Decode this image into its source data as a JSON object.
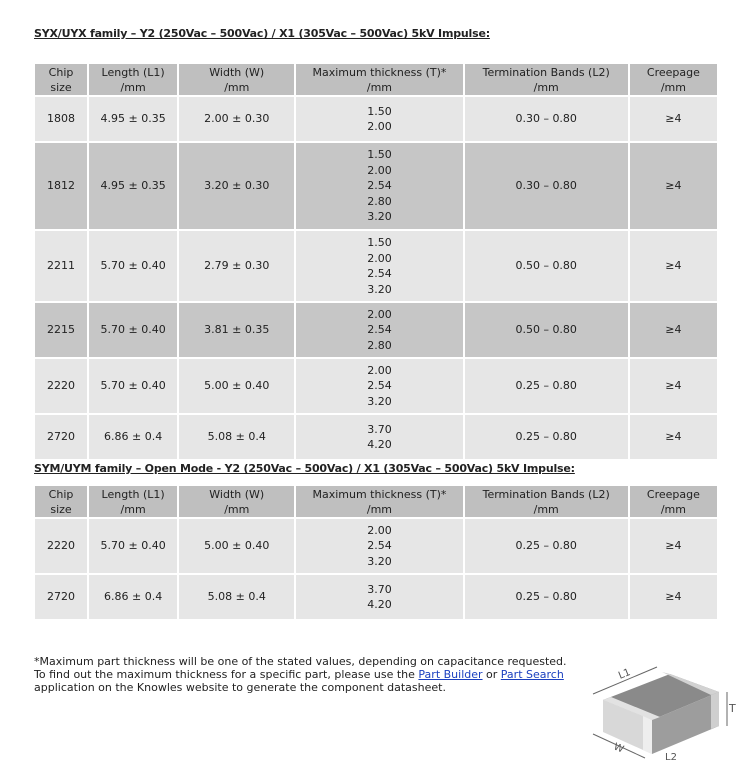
{
  "tables": [
    {
      "title": "SYX/UYX family – Y2 (250Vac – 500Vac) / X1 (305Vac – 500Vac) 5kV Impulse:",
      "headers": [
        [
          "Chip",
          "size"
        ],
        [
          "Length (L1)",
          "/mm"
        ],
        [
          "Width (W)",
          "/mm"
        ],
        [
          "Maximum thickness (T)*",
          "/mm"
        ],
        [
          "Termination Bands (L2)",
          "/mm"
        ],
        [
          "Creepage",
          "/mm"
        ]
      ],
      "rows": [
        {
          "chip": "1808",
          "length": "4.95 ± 0.35",
          "width": "2.00 ± 0.30",
          "thickness": [
            "1.50",
            "2.00"
          ],
          "band": "0.30 – 0.80",
          "creepage": "≥4"
        },
        {
          "chip": "1812",
          "length": "4.95 ± 0.35",
          "width": "3.20 ± 0.30",
          "thickness": [
            "1.50",
            "2.00",
            "2.54",
            "2.80",
            "3.20"
          ],
          "band": "0.30 – 0.80",
          "creepage": "≥4"
        },
        {
          "chip": "2211",
          "length": "5.70 ± 0.40",
          "width": "2.79 ± 0.30",
          "thickness": [
            "1.50",
            "2.00",
            "2.54",
            "3.20"
          ],
          "band": "0.50 – 0.80",
          "creepage": "≥4"
        },
        {
          "chip": "2215",
          "length": "5.70 ± 0.40",
          "width": "3.81 ± 0.35",
          "thickness": [
            "2.00",
            "2.54",
            "2.80"
          ],
          "band": "0.50 – 0.80",
          "creepage": "≥4"
        },
        {
          "chip": "2220",
          "length": "5.70 ± 0.40",
          "width": "5.00 ± 0.40",
          "thickness": [
            "2.00",
            "2.54",
            "3.20"
          ],
          "band": "0.25 – 0.80",
          "creepage": "≥4"
        },
        {
          "chip": "2720",
          "length": "6.86 ± 0.4",
          "width": "5.08 ± 0.4",
          "thickness": [
            "3.70",
            "4.20"
          ],
          "band": "0.25 – 0.80",
          "creepage": "≥4"
        }
      ]
    },
    {
      "title": "SYM/UYM family – Open Mode - Y2 (250Vac – 500Vac) / X1 (305Vac – 500Vac) 5kV Impulse:",
      "headers": [
        [
          "Chip",
          "size"
        ],
        [
          "Length (L1)",
          "/mm"
        ],
        [
          "Width (W)",
          "/mm"
        ],
        [
          "Maximum thickness (T)*",
          "/mm"
        ],
        [
          "Termination Bands (L2)",
          "/mm"
        ],
        [
          "Creepage",
          "/mm"
        ]
      ],
      "rows": [
        {
          "chip": "2220",
          "length": "5.70 ± 0.40",
          "width": "5.00 ± 0.40",
          "thickness": [
            "2.00",
            "2.54",
            "3.20"
          ],
          "band": "0.25 – 0.80",
          "creepage": "≥4"
        },
        {
          "chip": "2720",
          "length": "6.86 ± 0.4",
          "width": "5.08 ± 0.4",
          "thickness": [
            "3.70",
            "4.20"
          ],
          "band": "0.25 – 0.80",
          "creepage": "≥4"
        }
      ]
    }
  ],
  "row_shading": [
    [
      "l",
      "d",
      "l",
      "d",
      "l",
      "l"
    ],
    [
      "l",
      "l"
    ]
  ],
  "colors": {
    "header": "#bfbfbf",
    "row_light": "#e6e6e6",
    "row_dark": "#c6c6c6",
    "link": "#1a3fbf"
  },
  "note": {
    "text1": "*Maximum part thickness will be one of the stated values, depending on capacitance requested. To find out the maximum thickness for a specific part, please use the ",
    "link1": "Part Builder",
    "text2": " or ",
    "link2": "Part Search",
    "text3": " application on the Knowles website to generate the component datasheet."
  },
  "figure": {
    "labels": {
      "l1": "L1",
      "w": "W",
      "t": "T",
      "l2": "L2"
    }
  }
}
